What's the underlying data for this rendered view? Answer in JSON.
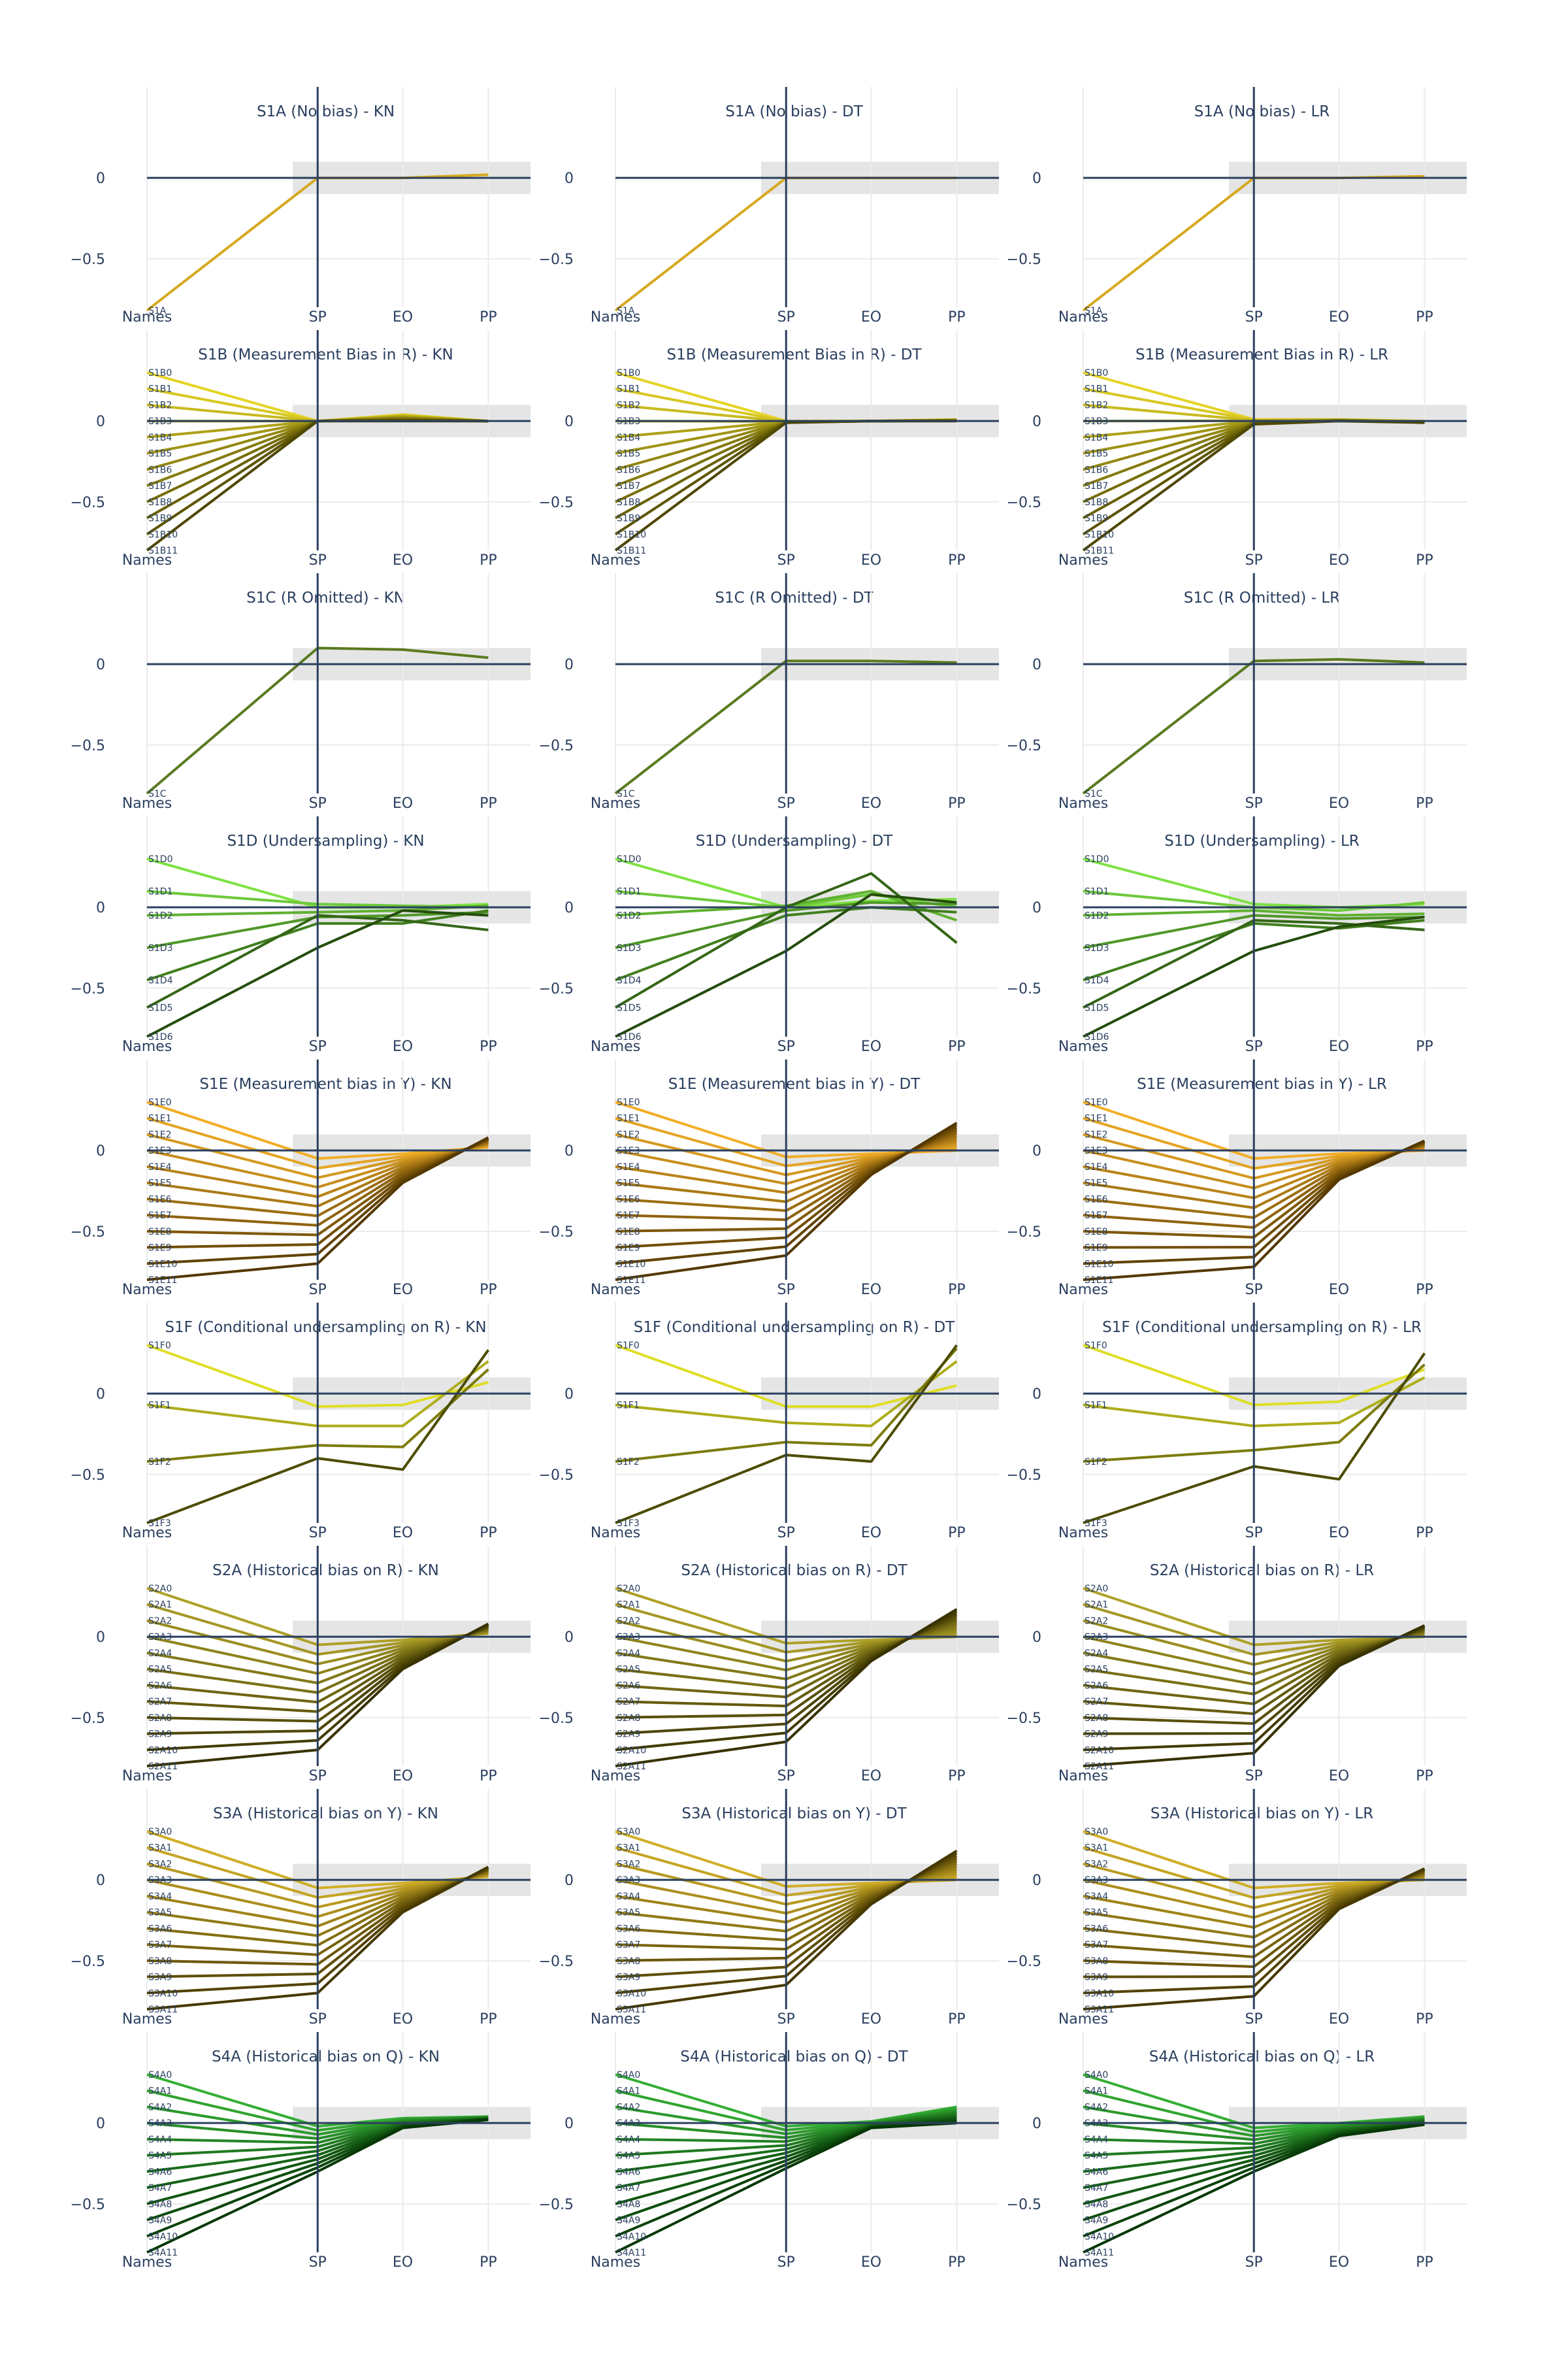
{
  "figure": {
    "axis_ticks": {
      "y": [
        "0",
        "−0.5"
      ],
      "x": [
        "Names",
        "SP",
        "EO",
        "PP"
      ]
    },
    "fair_band": [
      -0.1,
      0.1
    ],
    "ylim": [
      -0.8,
      0.3
    ]
  },
  "chart_data": [
    {
      "type": "line",
      "title": "S1A (No bias) - KN",
      "color_family": "#f5b800",
      "names": [
        "S1A"
      ],
      "series": [
        {
          "name": "S1A",
          "values": [
            -0.82,
            0.0,
            0.0,
            0.02
          ]
        }
      ]
    },
    {
      "type": "line",
      "title": "S1A (No bias) - DT",
      "color_family": "#f5b800",
      "names": [
        "S1A"
      ],
      "series": [
        {
          "name": "S1A",
          "values": [
            -0.82,
            0.0,
            0.0,
            0.0
          ]
        }
      ]
    },
    {
      "type": "line",
      "title": "S1A (No bias) - LR",
      "color_family": "#f5b800",
      "names": [
        "S1A"
      ],
      "series": [
        {
          "name": "S1A",
          "values": [
            -0.82,
            0.0,
            0.0,
            0.01
          ]
        }
      ]
    },
    {
      "type": "line",
      "title": "S1B (Measurement Bias in R) - KN",
      "color_family": "#e0cc00",
      "names": [
        "S1B0",
        "S1B1",
        "S1B2",
        "S1B3",
        "S1B4",
        "S1B5",
        "S1B6",
        "S1B7",
        "S1B8",
        "S1B9",
        "S1B10",
        "S1B11"
      ],
      "series": "fan",
      "start": [
        0.3,
        -0.8
      ],
      "sp": [
        0.0,
        0.0
      ],
      "eo": [
        0.04,
        0.0
      ],
      "pp": [
        0.0,
        0.0
      ]
    },
    {
      "type": "line",
      "title": "S1B (Measurement Bias in R) - DT",
      "color_family": "#e0cc00",
      "names": [
        "S1B0",
        "S1B1",
        "S1B2",
        "S1B3",
        "S1B4",
        "S1B5",
        "S1B6",
        "S1B7",
        "S1B8",
        "S1B9",
        "S1B10",
        "S1B11"
      ],
      "series": "fan",
      "start": [
        0.3,
        -0.8
      ],
      "sp": [
        0.0,
        -0.01
      ],
      "eo": [
        0.0,
        0.0
      ],
      "pp": [
        0.01,
        0.0
      ]
    },
    {
      "type": "line",
      "title": "S1B (Measurement Bias in R) - LR",
      "color_family": "#e0cc00",
      "names": [
        "S1B0",
        "S1B1",
        "S1B2",
        "S1B3",
        "S1B4",
        "S1B5",
        "S1B6",
        "S1B7",
        "S1B8",
        "S1B9",
        "S1B10",
        "S1B11"
      ],
      "series": "fan",
      "start": [
        0.3,
        -0.8
      ],
      "sp": [
        0.01,
        -0.02
      ],
      "eo": [
        0.01,
        0.0
      ],
      "pp": [
        0.0,
        -0.01
      ]
    },
    {
      "type": "line",
      "title": "S1C (R Omitted) - KN",
      "color_family": "#4f7a00",
      "names": [
        "S1C"
      ],
      "series": [
        {
          "name": "S1C",
          "values": [
            -0.8,
            0.1,
            0.09,
            0.04
          ]
        }
      ]
    },
    {
      "type": "line",
      "title": "S1C (R Omitted) - DT",
      "color_family": "#4f7a00",
      "names": [
        "S1C"
      ],
      "series": [
        {
          "name": "S1C",
          "values": [
            -0.8,
            0.02,
            0.02,
            0.01
          ]
        }
      ]
    },
    {
      "type": "line",
      "title": "S1C (R Omitted) - LR",
      "color_family": "#4f7a00",
      "names": [
        "S1C"
      ],
      "series": [
        {
          "name": "S1C",
          "values": [
            -0.8,
            0.02,
            0.03,
            0.01
          ]
        }
      ]
    },
    {
      "type": "line",
      "title": "S1D (Undersampling) - KN",
      "color_family": "#66dd22",
      "names": [
        "S1D0",
        "S1D1",
        "S1D2",
        "S1D3",
        "S1D4",
        "S1D5",
        "S1D6"
      ],
      "series": [
        {
          "name": "S1D0",
          "values": [
            0.3,
            0.0,
            0.0,
            0.02
          ]
        },
        {
          "name": "S1D1",
          "values": [
            0.1,
            0.02,
            0.01,
            0.0
          ]
        },
        {
          "name": "S1D2",
          "values": [
            -0.05,
            -0.03,
            -0.02,
            0.01
          ]
        },
        {
          "name": "S1D3",
          "values": [
            -0.25,
            -0.06,
            -0.05,
            -0.03
          ]
        },
        {
          "name": "S1D4",
          "values": [
            -0.45,
            -0.1,
            -0.1,
            -0.02
          ]
        },
        {
          "name": "S1D5",
          "values": [
            -0.62,
            -0.05,
            -0.08,
            -0.14
          ]
        },
        {
          "name": "S1D6",
          "values": [
            -0.8,
            -0.25,
            -0.02,
            -0.05
          ]
        }
      ]
    },
    {
      "type": "line",
      "title": "S1D (Undersampling) - DT",
      "color_family": "#66dd22",
      "names": [
        "S1D0",
        "S1D1",
        "S1D2",
        "S1D3",
        "S1D4",
        "S1D5",
        "S1D6"
      ],
      "series": [
        {
          "name": "S1D0",
          "values": [
            0.3,
            0.0,
            0.04,
            0.05
          ]
        },
        {
          "name": "S1D1",
          "values": [
            0.1,
            0.0,
            0.08,
            0.0
          ]
        },
        {
          "name": "S1D2",
          "values": [
            -0.05,
            0.01,
            0.1,
            -0.08
          ]
        },
        {
          "name": "S1D3",
          "values": [
            -0.25,
            -0.02,
            0.03,
            0.02
          ]
        },
        {
          "name": "S1D4",
          "values": [
            -0.45,
            -0.05,
            0.0,
            -0.03
          ]
        },
        {
          "name": "S1D5",
          "values": [
            -0.62,
            0.0,
            0.21,
            -0.22
          ]
        },
        {
          "name": "S1D6",
          "values": [
            -0.8,
            -0.27,
            0.08,
            0.03
          ]
        }
      ]
    },
    {
      "type": "line",
      "title": "S1D (Undersampling) - LR",
      "color_family": "#66dd22",
      "names": [
        "S1D0",
        "S1D1",
        "S1D2",
        "S1D3",
        "S1D4",
        "S1D5",
        "S1D6"
      ],
      "series": [
        {
          "name": "S1D0",
          "values": [
            0.3,
            0.02,
            0.0,
            0.02
          ]
        },
        {
          "name": "S1D1",
          "values": [
            0.1,
            0.0,
            -0.02,
            0.03
          ]
        },
        {
          "name": "S1D2",
          "values": [
            -0.05,
            -0.02,
            -0.05,
            -0.04
          ]
        },
        {
          "name": "S1D3",
          "values": [
            -0.25,
            -0.05,
            -0.07,
            -0.06
          ]
        },
        {
          "name": "S1D4",
          "values": [
            -0.45,
            -0.1,
            -0.13,
            -0.08
          ]
        },
        {
          "name": "S1D5",
          "values": [
            -0.62,
            -0.08,
            -0.1,
            -0.14
          ]
        },
        {
          "name": "S1D6",
          "values": [
            -0.8,
            -0.27,
            -0.12,
            -0.06
          ]
        }
      ]
    },
    {
      "type": "line",
      "title": "S1E (Measurement bias in Y) - KN",
      "color_family": "#f0a000",
      "names": [
        "S1E0",
        "S1E1",
        "S1E2",
        "S1E3",
        "S1E4",
        "S1E5",
        "S1E6",
        "S1E7",
        "S1E8",
        "S1E9",
        "S1E10",
        "S1E11"
      ],
      "series": "fan",
      "start": [
        0.3,
        -0.8
      ],
      "sp": [
        -0.05,
        -0.7
      ],
      "eo": [
        -0.02,
        -0.2
      ],
      "pp": [
        0.02,
        0.08
      ]
    },
    {
      "type": "line",
      "title": "S1E (Measurement bias in Y) - DT",
      "color_family": "#f0a000",
      "names": [
        "S1E0",
        "S1E1",
        "S1E2",
        "S1E3",
        "S1E4",
        "S1E5",
        "S1E6",
        "S1E7",
        "S1E8",
        "S1E9",
        "S1E10",
        "S1E11"
      ],
      "series": "fan",
      "start": [
        0.3,
        -0.8
      ],
      "sp": [
        -0.04,
        -0.65
      ],
      "eo": [
        -0.02,
        -0.15
      ],
      "pp": [
        0.0,
        0.17
      ]
    },
    {
      "type": "line",
      "title": "S1E (Measurement bias in Y) - LR",
      "color_family": "#f0a000",
      "names": [
        "S1E0",
        "S1E1",
        "S1E2",
        "S1E3",
        "S1E4",
        "S1E5",
        "S1E6",
        "S1E7",
        "S1E8",
        "S1E9",
        "S1E10",
        "S1E11"
      ],
      "series": "fan",
      "start": [
        0.3,
        -0.8
      ],
      "sp": [
        -0.05,
        -0.72
      ],
      "eo": [
        -0.02,
        -0.18
      ],
      "pp": [
        0.0,
        0.06
      ]
    },
    {
      "type": "line",
      "title": "S1F (Conditional undersampling on R) - KN",
      "color_family": "#d8d800",
      "names": [
        "S1F0",
        "S1F1",
        "S1F2",
        "S1F3"
      ],
      "series": [
        {
          "name": "S1F0",
          "values": [
            0.3,
            -0.08,
            -0.07,
            0.07
          ]
        },
        {
          "name": "S1F1",
          "values": [
            -0.07,
            -0.2,
            -0.2,
            0.2
          ]
        },
        {
          "name": "S1F2",
          "values": [
            -0.42,
            -0.32,
            -0.33,
            0.15
          ]
        },
        {
          "name": "S1F3",
          "values": [
            -0.8,
            -0.4,
            -0.47,
            0.27
          ]
        }
      ]
    },
    {
      "type": "line",
      "title": "S1F (Conditional undersampling on R) - DT",
      "color_family": "#d8d800",
      "names": [
        "S1F0",
        "S1F1",
        "S1F2",
        "S1F3"
      ],
      "series": [
        {
          "name": "S1F0",
          "values": [
            0.3,
            -0.08,
            -0.08,
            0.05
          ]
        },
        {
          "name": "S1F1",
          "values": [
            -0.07,
            -0.18,
            -0.2,
            0.2
          ]
        },
        {
          "name": "S1F2",
          "values": [
            -0.42,
            -0.3,
            -0.32,
            0.28
          ]
        },
        {
          "name": "S1F3",
          "values": [
            -0.8,
            -0.38,
            -0.42,
            0.3
          ]
        }
      ]
    },
    {
      "type": "line",
      "title": "S1F (Conditional undersampling on R) - LR",
      "color_family": "#d8d800",
      "names": [
        "S1F0",
        "S1F1",
        "S1F2",
        "S1F3"
      ],
      "series": [
        {
          "name": "S1F0",
          "values": [
            0.3,
            -0.07,
            -0.05,
            0.15
          ]
        },
        {
          "name": "S1F1",
          "values": [
            -0.07,
            -0.2,
            -0.18,
            0.1
          ]
        },
        {
          "name": "S1F2",
          "values": [
            -0.42,
            -0.35,
            -0.3,
            0.18
          ]
        },
        {
          "name": "S1F3",
          "values": [
            -0.8,
            -0.45,
            -0.53,
            0.25
          ]
        }
      ]
    },
    {
      "type": "line",
      "title": "S2A (Historical bias on R) - KN",
      "color_family": "#a09000",
      "names": [
        "S2A0",
        "S2A1",
        "S2A2",
        "S2A3",
        "S2A4",
        "S2A5",
        "S2A6",
        "S2A7",
        "S2A8",
        "S2A9",
        "S2A10",
        "S2A11"
      ],
      "series": "fan",
      "start": [
        0.3,
        -0.8
      ],
      "sp": [
        -0.05,
        -0.7
      ],
      "eo": [
        -0.02,
        -0.2
      ],
      "pp": [
        0.02,
        0.08
      ]
    },
    {
      "type": "line",
      "title": "S2A (Historical bias on R) - DT",
      "color_family": "#a09000",
      "names": [
        "S2A0",
        "S2A1",
        "S2A2",
        "S2A3",
        "S2A4",
        "S2A5",
        "S2A6",
        "S2A7",
        "S2A8",
        "S2A9",
        "S2A10",
        "S2A11"
      ],
      "series": "fan",
      "start": [
        0.3,
        -0.8
      ],
      "sp": [
        -0.04,
        -0.65
      ],
      "eo": [
        -0.02,
        -0.15
      ],
      "pp": [
        0.0,
        0.17
      ]
    },
    {
      "type": "line",
      "title": "S2A (Historical bias on R) - LR",
      "color_family": "#a09000",
      "names": [
        "S2A0",
        "S2A1",
        "S2A2",
        "S2A3",
        "S2A4",
        "S2A5",
        "S2A6",
        "S2A7",
        "S2A8",
        "S2A9",
        "S2A10",
        "S2A11"
      ],
      "series": "fan",
      "start": [
        0.3,
        -0.8
      ],
      "sp": [
        -0.05,
        -0.72
      ],
      "eo": [
        -0.02,
        -0.18
      ],
      "pp": [
        0.0,
        0.07
      ]
    },
    {
      "type": "line",
      "title": "S3A (Historical bias on Y) - KN",
      "color_family": "#c8a000",
      "names": [
        "S3A0",
        "S3A1",
        "S3A2",
        "S3A3",
        "S3A4",
        "S3A5",
        "S3A6",
        "S3A7",
        "S3A8",
        "S3A9",
        "S3A10",
        "S3A11"
      ],
      "series": "fan",
      "start": [
        0.3,
        -0.8
      ],
      "sp": [
        -0.05,
        -0.7
      ],
      "eo": [
        -0.02,
        -0.2
      ],
      "pp": [
        0.02,
        0.08
      ]
    },
    {
      "type": "line",
      "title": "S3A (Historical bias on Y) - DT",
      "color_family": "#c8a000",
      "names": [
        "S3A0",
        "S3A1",
        "S3A2",
        "S3A3",
        "S3A4",
        "S3A5",
        "S3A6",
        "S3A7",
        "S3A8",
        "S3A9",
        "S3A10",
        "S3A11"
      ],
      "series": "fan",
      "start": [
        0.3,
        -0.8
      ],
      "sp": [
        -0.04,
        -0.65
      ],
      "eo": [
        -0.02,
        -0.15
      ],
      "pp": [
        0.0,
        0.18
      ]
    },
    {
      "type": "line",
      "title": "S3A (Historical bias on Y) - LR",
      "color_family": "#c8a000",
      "names": [
        "S3A0",
        "S3A1",
        "S3A2",
        "S3A3",
        "S3A4",
        "S3A5",
        "S3A6",
        "S3A7",
        "S3A8",
        "S3A9",
        "S3A10",
        "S3A11"
      ],
      "series": "fan",
      "start": [
        0.3,
        -0.8
      ],
      "sp": [
        -0.05,
        -0.72
      ],
      "eo": [
        -0.02,
        -0.18
      ],
      "pp": [
        0.0,
        0.07
      ]
    },
    {
      "type": "line",
      "title": "S4A (Historical bias on Q) - KN",
      "color_family": "#10a010",
      "names": [
        "S4A0",
        "S4A1",
        "S4A2",
        "S4A3",
        "S4A4",
        "S4A5",
        "S4A6",
        "S4A7",
        "S4A8",
        "S4A9",
        "S4A10",
        "S4A11"
      ],
      "series": "fan",
      "start": [
        0.3,
        -0.8
      ],
      "sp": [
        -0.02,
        -0.3
      ],
      "eo": [
        0.03,
        -0.03
      ],
      "pp": [
        0.04,
        0.02
      ]
    },
    {
      "type": "line",
      "title": "S4A (Historical bias on Q) - DT",
      "color_family": "#10a010",
      "names": [
        "S4A0",
        "S4A1",
        "S4A2",
        "S4A3",
        "S4A4",
        "S4A5",
        "S4A6",
        "S4A7",
        "S4A8",
        "S4A9",
        "S4A10",
        "S4A11"
      ],
      "series": "fan",
      "start": [
        0.3,
        -0.8
      ],
      "sp": [
        -0.02,
        -0.28
      ],
      "eo": [
        0.01,
        -0.03
      ],
      "pp": [
        0.1,
        0.0
      ]
    },
    {
      "type": "line",
      "title": "S4A (Historical bias on Q) - LR",
      "color_family": "#10a010",
      "names": [
        "S4A0",
        "S4A1",
        "S4A2",
        "S4A3",
        "S4A4",
        "S4A5",
        "S4A6",
        "S4A7",
        "S4A8",
        "S4A9",
        "S4A10",
        "S4A11"
      ],
      "series": "fan",
      "start": [
        0.3,
        -0.8
      ],
      "sp": [
        -0.03,
        -0.3
      ],
      "eo": [
        0.0,
        -0.08
      ],
      "pp": [
        0.04,
        -0.01
      ]
    }
  ]
}
